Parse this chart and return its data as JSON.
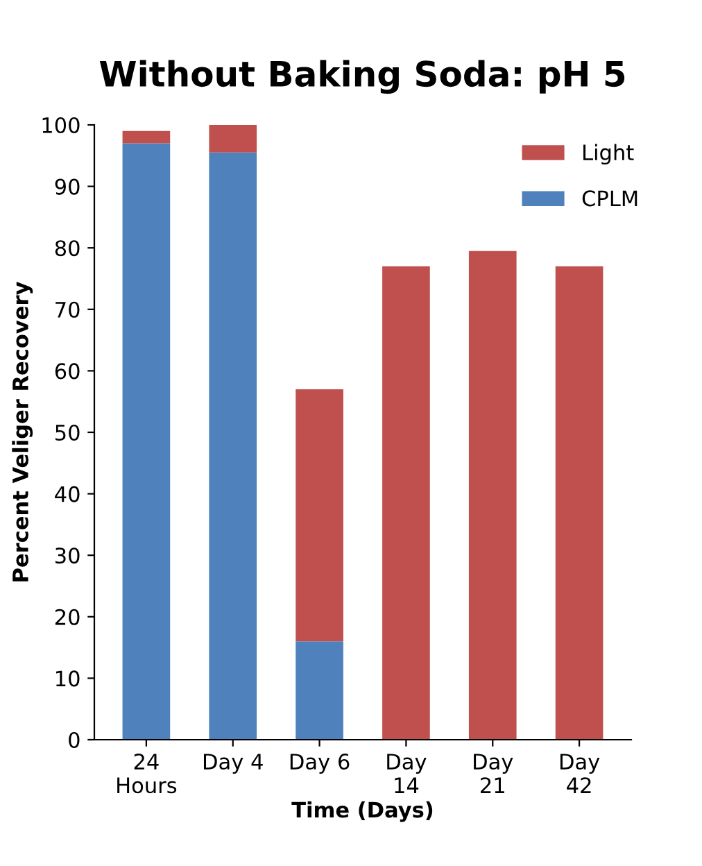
{
  "chart_data": {
    "type": "bar",
    "title": "Without Baking Soda: pH 5",
    "xlabel": "Time (Days)",
    "ylabel": "Percent Veliger Recovery",
    "categories": [
      "24\nHours",
      "Day 4",
      "Day 6",
      "Day\n14",
      "Day\n21",
      "Day\n42"
    ],
    "stacked": true,
    "series": [
      {
        "name": "CPLM",
        "color": "#4f81bd",
        "values": [
          97,
          95.5,
          16,
          0,
          0,
          0
        ]
      },
      {
        "name": "Light",
        "color": "#c0504d",
        "values": [
          2,
          4.5,
          41,
          77,
          79.5,
          77
        ]
      }
    ],
    "ylim": [
      0,
      100
    ],
    "yticks": [
      0,
      10,
      20,
      30,
      40,
      50,
      60,
      70,
      80,
      90,
      100
    ],
    "grid": false,
    "legend": "top right"
  }
}
